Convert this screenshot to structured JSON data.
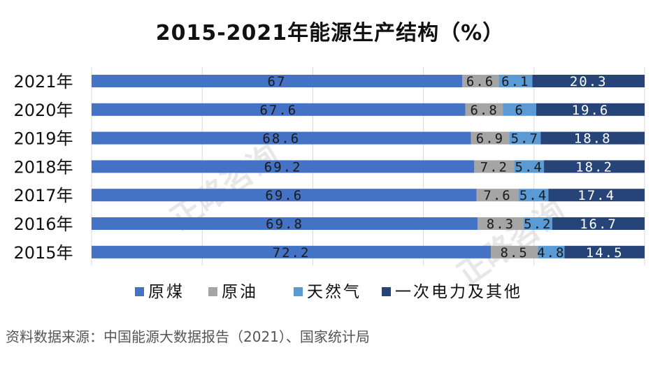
{
  "title": "2015-2021年能源生产结构（%）",
  "source": "资料数据来源：中国能源大数据报告（2021）、国家统计局",
  "watermark": "正略咨询",
  "chart_data": {
    "type": "bar",
    "orientation": "horizontal",
    "stacked": true,
    "percent_stacked": true,
    "categories": [
      "2021年",
      "2020年",
      "2019年",
      "2018年",
      "2017年",
      "2016年",
      "2015年"
    ],
    "series": [
      {
        "name": "原煤",
        "color": "#4472C4",
        "values": [
          67,
          67.6,
          68.6,
          69.2,
          69.6,
          69.8,
          72.2
        ]
      },
      {
        "name": "原油",
        "color": "#A5A5A5",
        "values": [
          6.6,
          6.8,
          6.9,
          7.2,
          7.6,
          8.3,
          8.5
        ]
      },
      {
        "name": "天然气",
        "color": "#5B9BD5",
        "values": [
          6.1,
          6,
          5.7,
          5.4,
          5.4,
          5.2,
          4.8
        ]
      },
      {
        "name": "一次电力及其他",
        "color": "#264478",
        "values": [
          20.3,
          19.6,
          18.8,
          18.2,
          17.4,
          16.7,
          14.5
        ]
      }
    ],
    "data_labels": true,
    "grid": true,
    "legend_position": "bottom"
  }
}
